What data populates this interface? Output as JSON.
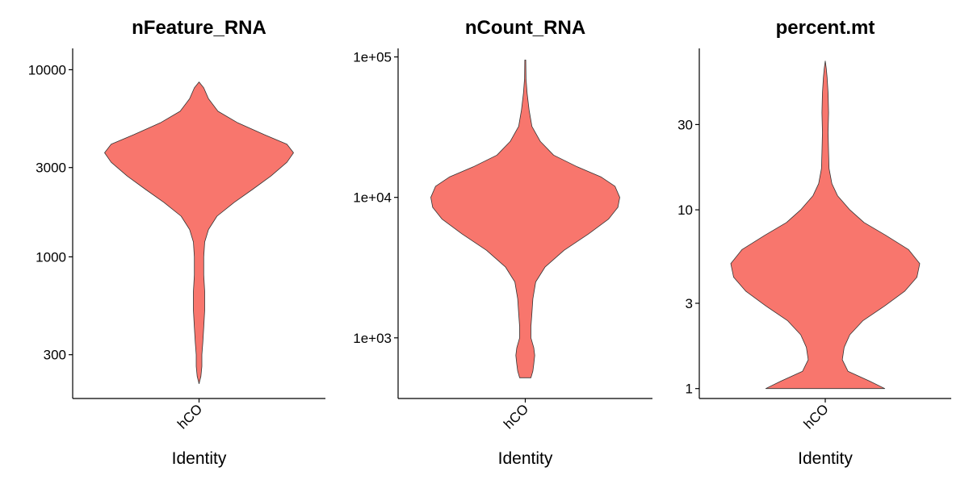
{
  "chart_data": [
    {
      "type": "violin",
      "title": "nFeature_RNA",
      "xlabel": "Identity",
      "ylabel": "",
      "categories": [
        "hCO"
      ],
      "y_scale": "log10",
      "yticks": [
        300,
        1000,
        3000,
        10000
      ],
      "ytick_labels": [
        "300",
        "1000",
        "3000",
        "10000"
      ],
      "ylim": [
        175,
        13000
      ],
      "data_range": [
        210,
        8600
      ],
      "fill_color": "#F8766D",
      "outline_color": "#333333",
      "grid": false,
      "legend": "none",
      "density_profile": [
        [
          210,
          0.0
        ],
        [
          230,
          0.02
        ],
        [
          260,
          0.03
        ],
        [
          300,
          0.03
        ],
        [
          350,
          0.04
        ],
        [
          420,
          0.05
        ],
        [
          520,
          0.06
        ],
        [
          650,
          0.06
        ],
        [
          800,
          0.05
        ],
        [
          1000,
          0.05
        ],
        [
          1200,
          0.06
        ],
        [
          1400,
          0.1
        ],
        [
          1650,
          0.19
        ],
        [
          1950,
          0.37
        ],
        [
          2300,
          0.57
        ],
        [
          2700,
          0.76
        ],
        [
          3200,
          0.93
        ],
        [
          3600,
          1.0
        ],
        [
          4000,
          0.93
        ],
        [
          4500,
          0.69
        ],
        [
          5200,
          0.41
        ],
        [
          6000,
          0.2
        ],
        [
          7000,
          0.1
        ],
        [
          8000,
          0.05
        ],
        [
          8600,
          0.0
        ]
      ]
    },
    {
      "type": "violin",
      "title": "nCount_RNA",
      "xlabel": "Identity",
      "ylabel": "",
      "categories": [
        "hCO"
      ],
      "y_scale": "log10",
      "yticks": [
        1000,
        10000,
        100000
      ],
      "ytick_labels": [
        "1e+03",
        "1e+04",
        "1e+05"
      ],
      "ylim": [
        370,
        115000
      ],
      "data_range": [
        520,
        95000
      ],
      "fill_color": "#F8766D",
      "outline_color": "#333333",
      "grid": false,
      "legend": "none",
      "density_profile": [
        [
          520,
          0.06
        ],
        [
          580,
          0.08
        ],
        [
          650,
          0.09
        ],
        [
          750,
          0.1
        ],
        [
          850,
          0.09
        ],
        [
          1000,
          0.06
        ],
        [
          1200,
          0.06
        ],
        [
          1500,
          0.07
        ],
        [
          1900,
          0.08
        ],
        [
          2500,
          0.11
        ],
        [
          3200,
          0.21
        ],
        [
          4200,
          0.41
        ],
        [
          5500,
          0.67
        ],
        [
          7000,
          0.88
        ],
        [
          8500,
          0.98
        ],
        [
          10000,
          1.0
        ],
        [
          12000,
          0.95
        ],
        [
          14000,
          0.8
        ],
        [
          16500,
          0.55
        ],
        [
          20000,
          0.3
        ],
        [
          25000,
          0.16
        ],
        [
          32000,
          0.07
        ],
        [
          42000,
          0.04
        ],
        [
          55000,
          0.02
        ],
        [
          70000,
          0.008
        ],
        [
          95000,
          0.005
        ]
      ]
    },
    {
      "type": "violin",
      "title": "percent.mt",
      "xlabel": "Identity",
      "ylabel": "",
      "categories": [
        "hCO"
      ],
      "y_scale": "log10",
      "yticks": [
        1,
        3,
        10,
        30
      ],
      "ytick_labels": [
        "1",
        "3",
        "10",
        "30"
      ],
      "ylim": [
        0.88,
        80
      ],
      "data_range": [
        1,
        68
      ],
      "fill_color": "#F8766D",
      "outline_color": "#333333",
      "grid": false,
      "legend": "none",
      "density_profile": [
        [
          1.0,
          0.63
        ],
        [
          1.1,
          0.47
        ],
        [
          1.25,
          0.24
        ],
        [
          1.45,
          0.18
        ],
        [
          1.7,
          0.2
        ],
        [
          2.0,
          0.26
        ],
        [
          2.4,
          0.4
        ],
        [
          2.9,
          0.63
        ],
        [
          3.5,
          0.84
        ],
        [
          4.2,
          0.97
        ],
        [
          5.0,
          1.0
        ],
        [
          6.0,
          0.88
        ],
        [
          7.2,
          0.64
        ],
        [
          8.5,
          0.41
        ],
        [
          10.0,
          0.26
        ],
        [
          12.0,
          0.13
        ],
        [
          14.0,
          0.07
        ],
        [
          17.0,
          0.04
        ],
        [
          21.0,
          0.035
        ],
        [
          27.0,
          0.03
        ],
        [
          35.0,
          0.035
        ],
        [
          45.0,
          0.03
        ],
        [
          55.0,
          0.02
        ],
        [
          62.0,
          0.01
        ],
        [
          68.0,
          0.0
        ]
      ]
    }
  ]
}
